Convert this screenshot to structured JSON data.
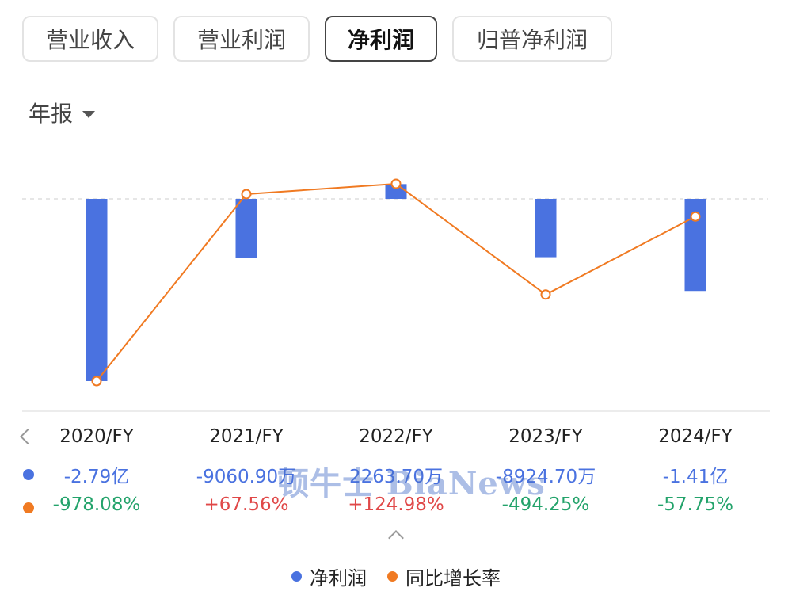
{
  "tabs": [
    {
      "label": "营业收入"
    },
    {
      "label": "营业利润"
    },
    {
      "label": "净利润"
    },
    {
      "label": "归普净利润"
    }
  ],
  "period": {
    "label": "年报"
  },
  "watermark": "顿牛士 BiaNews",
  "colors": {
    "bar": "#4a72e0",
    "line": "#f07a22",
    "positive": "#e04848",
    "negative": "#23a36b"
  },
  "legend": {
    "net_profit": "净利润",
    "yoy": "同比增长率"
  },
  "chart_data": {
    "type": "bar",
    "categories": [
      "2020/FY",
      "2021/FY",
      "2022/FY",
      "2023/FY",
      "2024/FY"
    ],
    "series": [
      {
        "name": "净利润",
        "type": "bar",
        "values": [
          -27900,
          -9060.9,
          2263.7,
          -8924.7,
          -14100
        ],
        "unit": "万",
        "labels": [
          "-2.79亿",
          "-9060.90万",
          "2263.70万",
          "-8924.70万",
          "-1.41亿"
        ]
      },
      {
        "name": "同比增长率",
        "type": "line",
        "values": [
          -978.08,
          67.56,
          124.98,
          -494.25,
          -57.75
        ],
        "unit": "%",
        "labels": [
          "-978.08%",
          "+67.56%",
          "+124.98%",
          "-494.25%",
          "-57.75%"
        ]
      }
    ]
  }
}
